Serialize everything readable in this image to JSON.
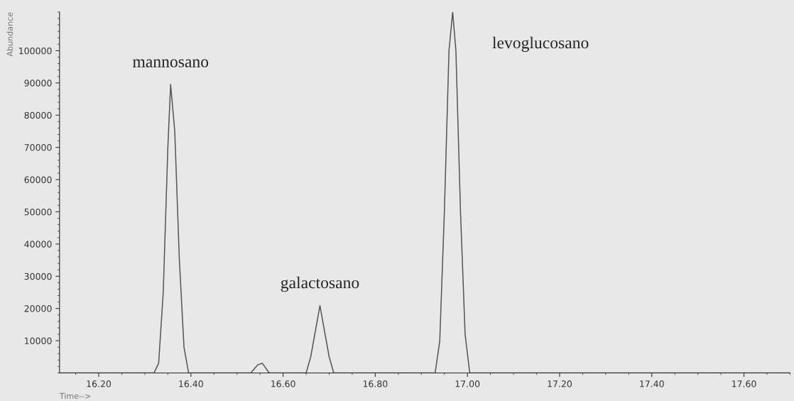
{
  "chart_data": {
    "type": "line",
    "xlabel": "Time-->",
    "ylabel": "Abundance",
    "x": [
      16.115,
      16.32,
      16.33,
      16.34,
      16.35,
      16.356,
      16.365,
      16.375,
      16.385,
      16.395,
      16.53,
      16.545,
      16.555,
      16.57,
      16.65,
      16.66,
      16.68,
      16.7,
      16.71,
      16.93,
      16.94,
      16.95,
      16.96,
      16.968,
      16.975,
      16.985,
      16.995,
      17.005,
      17.7
    ],
    "series": [
      {
        "color": "#555555",
        "values": [
          0,
          0,
          3000,
          25000,
          70000,
          89500,
          75000,
          35000,
          8000,
          0,
          0,
          2500,
          3000,
          0,
          0,
          5000,
          20900,
          5000,
          0,
          0,
          10000,
          50000,
          100000,
          112000,
          100000,
          50000,
          12000,
          0,
          0
        ]
      }
    ],
    "xlim": [
      16.115,
      17.7
    ],
    "ylim": [
      0,
      112000
    ],
    "xticks": [
      {
        "value": 16.2,
        "label": "16.20"
      },
      {
        "value": 16.4,
        "label": "16.40"
      },
      {
        "value": 16.6,
        "label": "16.60"
      },
      {
        "value": 16.8,
        "label": "16.80"
      },
      {
        "value": 17.0,
        "label": "17.00"
      },
      {
        "value": 17.2,
        "label": "17.20"
      },
      {
        "value": 17.4,
        "label": "17.40"
      },
      {
        "value": 17.6,
        "label": "17.60"
      }
    ],
    "yticks": [
      10000,
      20000,
      30000,
      40000,
      50000,
      60000,
      70000,
      80000,
      90000,
      100000
    ],
    "grid": false,
    "marker": "none",
    "line_style": "solid",
    "annotations": [
      {
        "text": "mannosano",
        "x": 16.356,
        "y": 89500
      },
      {
        "text": "galactosano",
        "x": 16.68,
        "y": 20900
      },
      {
        "text": "levoglucosano",
        "x": 16.968,
        "y": 112000
      }
    ]
  }
}
